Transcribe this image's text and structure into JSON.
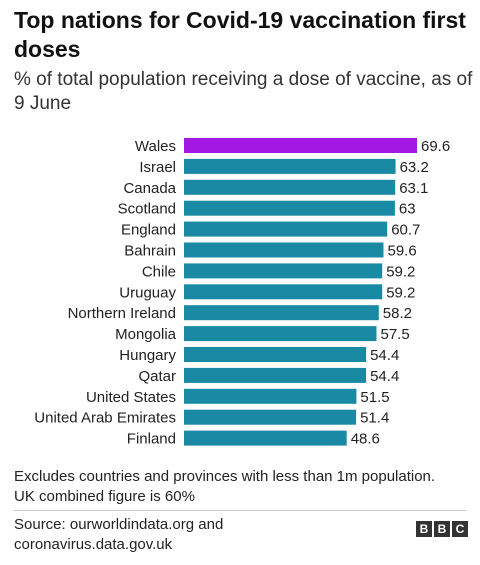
{
  "title": "Top nations for Covid-19 vaccination first doses",
  "subtitle": "% of total population receiving a dose of vaccine, as of 9 June",
  "chart_data": {
    "type": "bar",
    "orientation": "horizontal",
    "categories": [
      "Wales",
      "Israel",
      "Canada",
      "Scotland",
      "England",
      "Bahrain",
      "Chile",
      "Uruguay",
      "Northern Ireland",
      "Mongolia",
      "Hungary",
      "Qatar",
      "United States",
      "United Arab Emirates",
      "Finland"
    ],
    "values": [
      69.6,
      63.2,
      63.1,
      63,
      60.7,
      59.6,
      59.2,
      59.2,
      58.2,
      57.5,
      54.4,
      54.4,
      51.5,
      51.4,
      48.6
    ],
    "value_labels": [
      "69.6",
      "63.2",
      "63.1",
      "63",
      "60.7",
      "59.6",
      "59.2",
      "59.2",
      "58.2",
      "57.5",
      "54.4",
      "54.4",
      "51.5",
      "51.4",
      "48.6"
    ],
    "highlight_category": "Wales",
    "colors": {
      "bar": "#1a8aa4",
      "highlight": "#a219e4"
    },
    "xlim": [
      0,
      69.6
    ],
    "grid": false,
    "legend": "none"
  },
  "footnote": "Excludes countries and provinces with less than 1m population. UK combined figure is 60%",
  "source": "Source: ourworldindata.org and coronavirus.data.gov.uk",
  "logo": {
    "letters": [
      "B",
      "B",
      "C"
    ]
  }
}
